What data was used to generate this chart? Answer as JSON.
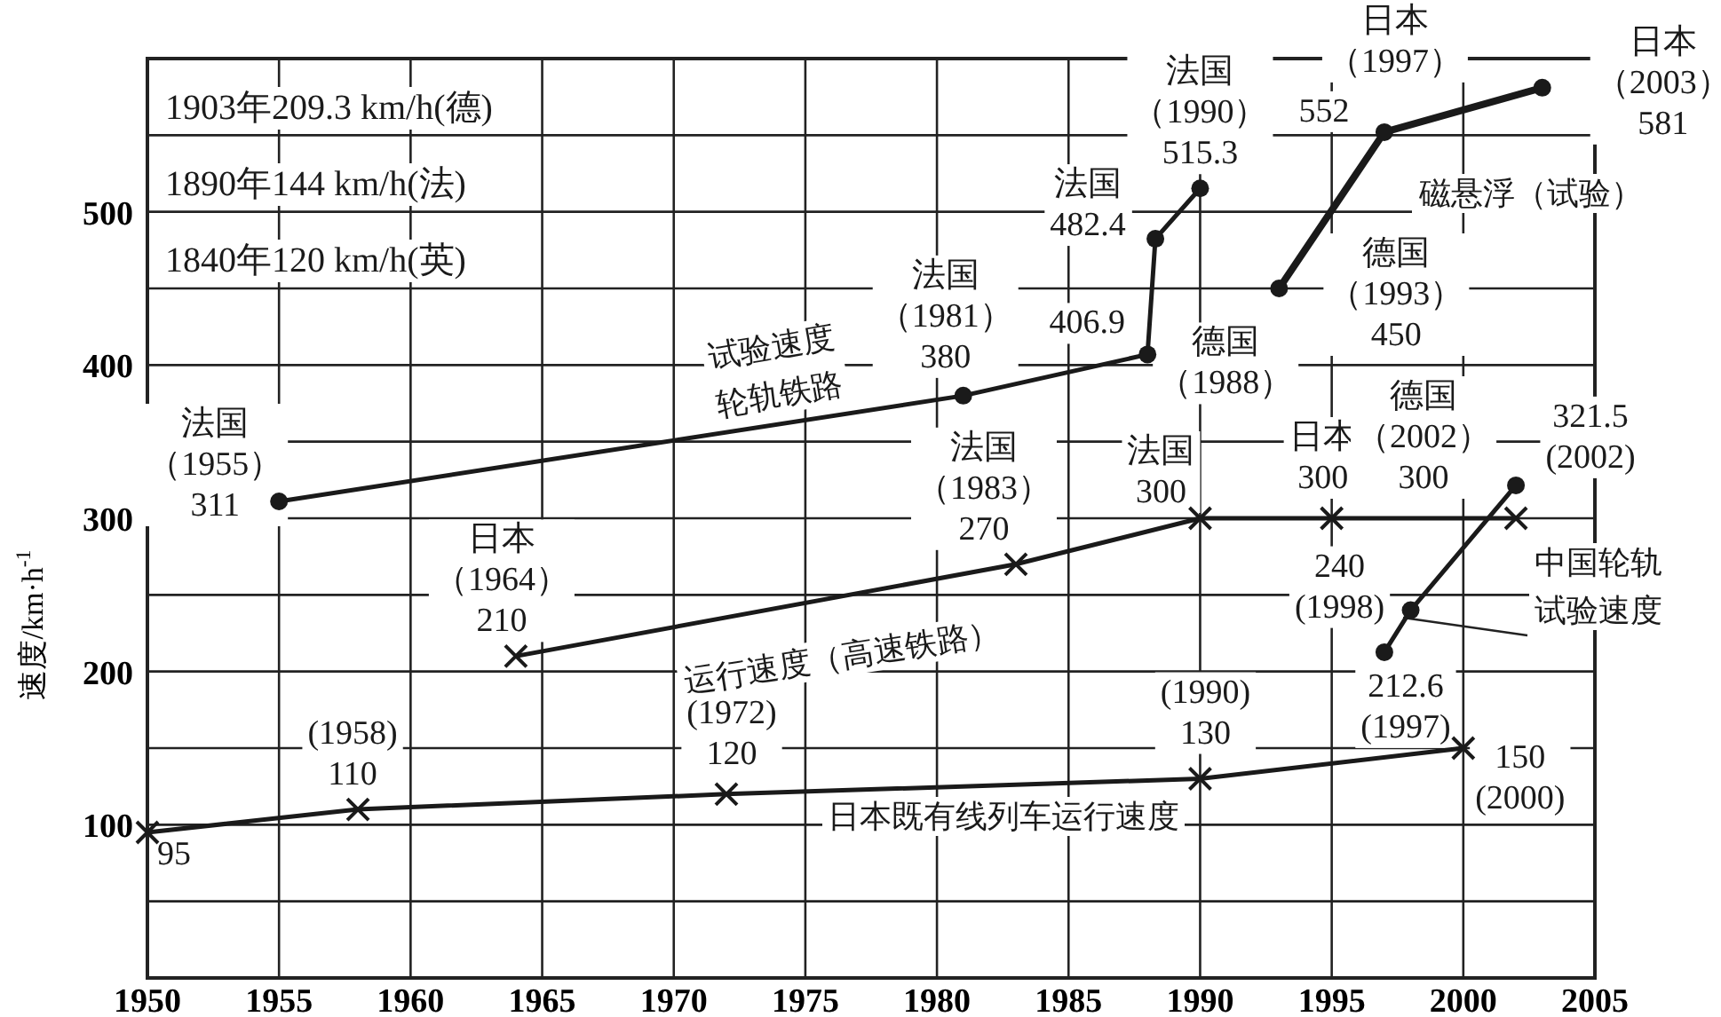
{
  "chart_data": {
    "type": "line",
    "ylabel": "速度/km·h$^{-1}$",
    "xlim": [
      1950,
      2005
    ],
    "xticks": [
      1950,
      1955,
      1960,
      1965,
      1970,
      1975,
      1980,
      1985,
      1990,
      1995,
      2000,
      2005
    ],
    "ylim": [
      0,
      600
    ],
    "yticks": [
      {
        "value": 50,
        "label": null
      },
      100,
      {
        "value": 150,
        "label": null
      },
      200,
      {
        "value": 250,
        "label": null
      },
      300,
      {
        "value": 350,
        "label": null
      },
      400,
      {
        "value": 450,
        "label": null
      },
      500,
      {
        "value": 550,
        "label": null
      }
    ],
    "grid": true,
    "line_style": "solid",
    "series": [
      {
        "name": "试验速度轮轨铁路",
        "color": "#1a1a1a",
        "marker": "circle",
        "x": [
          1955,
          1981,
          1988,
          1988.3,
          1990
        ],
        "values": [
          311,
          380,
          406.9,
          482.4,
          515.3
        ]
      },
      {
        "name": "运行速度（高速铁路）",
        "color": "#1a1a1a",
        "marker": "cross",
        "x": [
          1964,
          1983,
          1990,
          1995,
          2002
        ],
        "values": [
          210,
          270,
          300,
          300,
          300
        ]
      },
      {
        "name": "日本既有线列车运行速度",
        "color": "#1a1a1a",
        "marker": "cross",
        "x": [
          1950,
          1958,
          1972,
          1990,
          2000
        ],
        "values": [
          95,
          110,
          120,
          130,
          150
        ]
      },
      {
        "name": "磁悬浮（试验）",
        "color": "#1a1a1a",
        "marker": "circle",
        "x": [
          1993,
          1997,
          2003
        ],
        "values": [
          450,
          552,
          581
        ]
      },
      {
        "name": "中国轮轨试验速度",
        "color": "#1a1a1a",
        "marker": "circle",
        "x": [
          1997,
          1998,
          2002
        ],
        "values": [
          212.6,
          240,
          321.5
        ]
      }
    ],
    "annotations": [
      "1903年209.3 km/h(德)",
      "1890年144 km/h(法)",
      "1840年120 km/h(英)",
      {
        "text": "法国（1955）311",
        "x": 1955,
        "y": 311
      },
      {
        "text": "法国（1981）380",
        "x": 1981,
        "y": 380
      },
      {
        "text": "406.9",
        "x": 1988,
        "y": 406.9
      },
      {
        "text": "德国（1988）",
        "x": 1988,
        "y": 406.9
      },
      {
        "text": "法国482.4",
        "x": 1988.3,
        "y": 482.4
      },
      {
        "text": "法国（1990）515.3",
        "x": 1990,
        "y": 515.3
      },
      {
        "text": "日本（1997）",
        "x": 1997,
        "y": 552
      },
      {
        "text": "552",
        "x": 1997,
        "y": 552
      },
      {
        "text": "日本（2003）581",
        "x": 2003,
        "y": 581
      },
      {
        "text": "德国（1993）450",
        "x": 1993,
        "y": 450
      },
      {
        "text": "日本（1964）210",
        "x": 1964,
        "y": 210
      },
      {
        "text": "法国（1983）270",
        "x": 1983,
        "y": 270
      },
      {
        "text": "法国300",
        "x": 1990,
        "y": 300
      },
      {
        "text": "日本300",
        "x": 1995,
        "y": 300
      },
      {
        "text": "德国（2002）300",
        "x": 2002,
        "y": 300
      },
      {
        "text": "321.5(2002)",
        "x": 2002,
        "y": 321.5
      },
      {
        "text": "240(1998)",
        "x": 1998,
        "y": 240
      },
      {
        "text": "212.6(1997)",
        "x": 1997,
        "y": 212.6
      },
      {
        "text": "(1958)110",
        "x": 1958,
        "y": 110
      },
      {
        "text": "(1972)120",
        "x": 1972,
        "y": 120
      },
      {
        "text": "(1990)130",
        "x": 1990,
        "y": 130
      },
      {
        "text": "150(2000)",
        "x": 2000,
        "y": 150
      },
      {
        "text": "95",
        "x": 1950,
        "y": 95
      }
    ]
  }
}
